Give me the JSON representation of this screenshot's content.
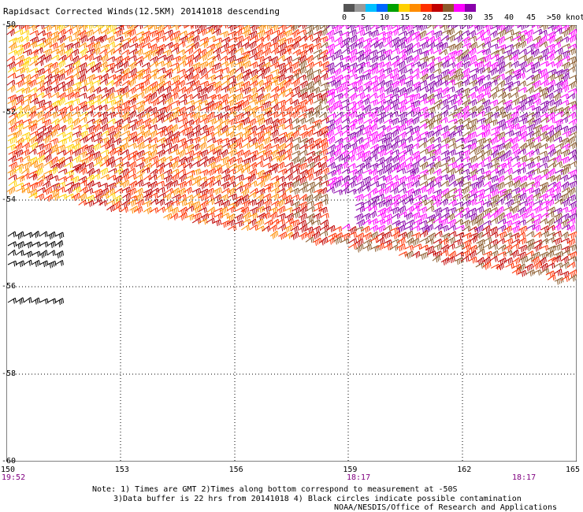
{
  "title": "Rapidsact Corrected Winds(12.5KM) 20141018 descending",
  "colorbar": {
    "colors": [
      "#555555",
      "#999999",
      "#00c0ff",
      "#0066ff",
      "#00a000",
      "#ffd000",
      "#ff8c00",
      "#ff3000",
      "#c00000",
      "#8b5a2b",
      "#ff00ff",
      "#8800aa"
    ],
    "labels": [
      "0",
      "5",
      "10",
      "15",
      "20",
      "25",
      "30",
      "35",
      "40",
      "45",
      ">50 knots"
    ]
  },
  "map": {
    "lat_labels": [
      "-50",
      "-52",
      "-54",
      "-56",
      "-58",
      "-60"
    ],
    "lon_labels": [
      "150",
      "153",
      "156",
      "159",
      "162",
      "165"
    ],
    "time_labels": [
      "19:52",
      "18:17",
      "18:17"
    ],
    "wind_field": {
      "region_colors": {
        "west": [
          "#ff8c00",
          "#ffd000",
          "#ff3000",
          "#c00000"
        ],
        "central": [
          "#ff3000",
          "#c00000",
          "#ff8c00"
        ],
        "east": [
          "#ff00ff",
          "#8800aa",
          "#8b5a2b",
          "#c00000",
          "#ff3000"
        ]
      }
    }
  },
  "notes": [
    "Note: 1) Times are GMT 2)Times along bottom correspond to measurement at -50S",
    "3)Data buffer is 22 hrs from 20141018 4) Black circles indicate possible contamination"
  ],
  "credit": "NOAA/NESDIS/Office of Research and Applications"
}
